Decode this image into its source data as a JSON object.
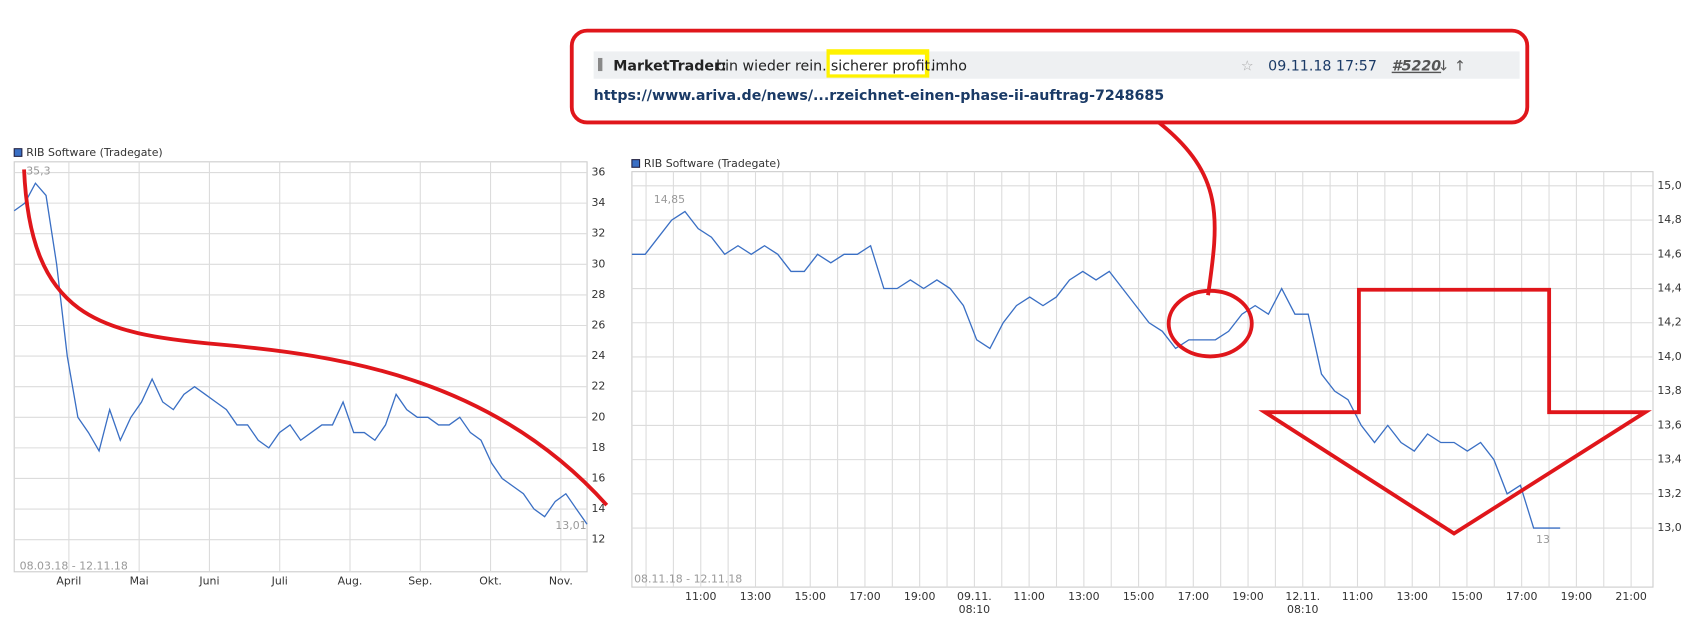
{
  "post": {
    "user": "MarketTrader:",
    "text_before": "bin wieder rein..",
    "highlight": "sicherer profit.",
    "text_after": "imho",
    "date": "09.11.18 17:57",
    "post_id": "#5220",
    "link": "https://www.ariva.de/news/...rzeichnet-einen-phase-ii-auftrag-7248685"
  },
  "chart_data": [
    {
      "type": "line",
      "legend": "RIB Software (Tradegate)",
      "range_label": "08.03.18 - 12.11.18",
      "max_label": "35,3",
      "min_label": "13,01",
      "color": "#3a6fc4",
      "xticks": [
        "April",
        "Mai",
        "Juni",
        "Juli",
        "Aug.",
        "Sep.",
        "Okt.",
        "Nov."
      ],
      "values": [
        33.5,
        34,
        35.3,
        34.5,
        30,
        24,
        20,
        19,
        17.8,
        20.5,
        18.5,
        20,
        21,
        22.5,
        21,
        20.5,
        21.5,
        22,
        21.5,
        21,
        20.5,
        19.5,
        19.5,
        18.5,
        18,
        19,
        19.5,
        18.5,
        19,
        19.5,
        19.5,
        21,
        19,
        19,
        18.5,
        19.5,
        21.5,
        20.5,
        20,
        20,
        19.5,
        19.5,
        20,
        19,
        18.5,
        17,
        16,
        15.5,
        15,
        14,
        13.5,
        14.5,
        15,
        14,
        13.01
      ],
      "ylim": [
        9.9,
        36.7
      ],
      "yticks": [
        12,
        14,
        16,
        18,
        20,
        22,
        24,
        26,
        28,
        30,
        32,
        34,
        36
      ],
      "grid": true
    },
    {
      "type": "line",
      "legend": "RIB Software (Tradegate)",
      "range_label": "08.11.18 - 12.11.18",
      "max_label": "14,85",
      "min_label": "13",
      "color": "#3a6fc4",
      "xticks": [
        "11:00",
        "13:00",
        "15:00",
        "17:00",
        "19:00",
        {
          "date": "09.11.",
          "time": "08:10"
        },
        "11:00",
        "13:00",
        "15:00",
        "17:00",
        "19:00",
        {
          "date": "12.11.",
          "time": "08:10"
        },
        "11:00",
        "13:00",
        "15:00",
        "17:00",
        "19:00",
        "21:00"
      ],
      "values": [
        14.6,
        14.6,
        14.7,
        14.8,
        14.85,
        14.75,
        14.7,
        14.6,
        14.65,
        14.6,
        14.65,
        14.6,
        14.5,
        14.5,
        14.6,
        14.55,
        14.6,
        14.6,
        14.65,
        14.4,
        14.4,
        14.45,
        14.4,
        14.45,
        14.4,
        14.3,
        14.1,
        14.05,
        14.2,
        14.3,
        14.35,
        14.3,
        14.35,
        14.45,
        14.5,
        14.45,
        14.5,
        14.4,
        14.3,
        14.2,
        14.15,
        14.05,
        14.1,
        14.1,
        14.1,
        14.15,
        14.25,
        14.3,
        14.25,
        14.4,
        14.25,
        14.25,
        13.9,
        13.8,
        13.75,
        13.6,
        13.5,
        13.6,
        13.5,
        13.45,
        13.55,
        13.5,
        13.5,
        13.45,
        13.5,
        13.4,
        13.2,
        13.25,
        13.0,
        13.0,
        13.0,
        null,
        null,
        null,
        null,
        null,
        null,
        null
      ],
      "ylim": [
        12.655,
        15.083
      ],
      "yticks": [
        {
          "value": 13.0,
          "label": "13,0"
        },
        {
          "value": 13.2,
          "label": "13,2"
        },
        {
          "value": 13.4,
          "label": "13,4"
        },
        {
          "value": 13.6,
          "label": "13,6"
        },
        {
          "value": 13.8,
          "label": "13,8"
        },
        {
          "value": 14.0,
          "label": "14,0"
        },
        {
          "value": 14.2,
          "label": "14,2"
        },
        {
          "value": 14.4,
          "label": "14,4"
        },
        {
          "value": 14.6,
          "label": "14,6"
        },
        {
          "value": 14.8,
          "label": "14,8"
        },
        {
          "value": 15.0,
          "label": "15,0"
        }
      ],
      "grid": true
    }
  ]
}
